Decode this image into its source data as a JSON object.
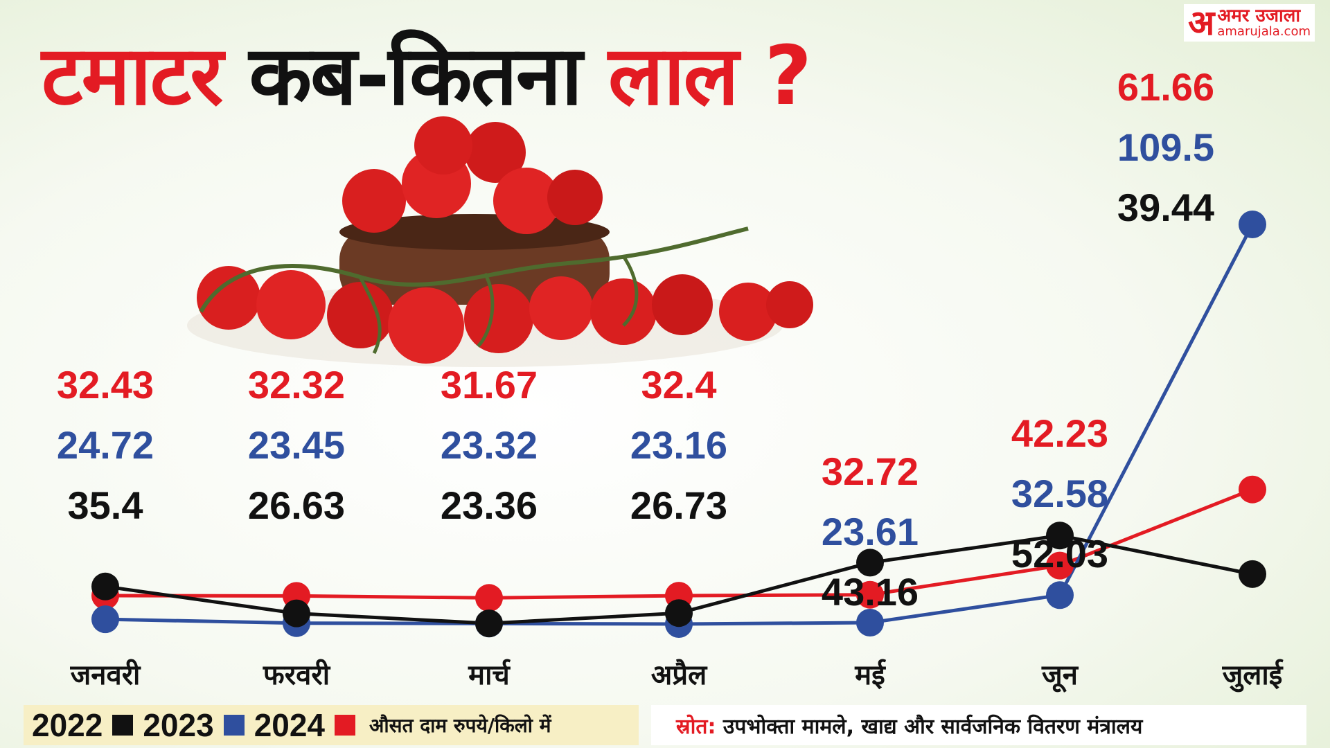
{
  "title": {
    "part1": "टमाटर",
    "part2": "कब-कितना",
    "part3": "लाल ?"
  },
  "brand": {
    "logo": "अ",
    "name": "अमर उजाला",
    "url": "amarujala.com"
  },
  "legend": {
    "items": [
      {
        "label": "2022",
        "color": "#111111"
      },
      {
        "label": "2023",
        "color": "#2f4f9e"
      },
      {
        "label": "2024",
        "color": "#e31b23"
      }
    ],
    "note": "औसत दाम रुपये/किलो में"
  },
  "source": {
    "label": "स्रोत:",
    "text": "उपभोक्ता मामले, खाद्य और सार्वजनिक वितरण मंत्रालय"
  },
  "chart_data": {
    "type": "line",
    "categories": [
      "जनवरी",
      "फरवरी",
      "मार्च",
      "अप्रैल",
      "मई",
      "जून",
      "जुलाई"
    ],
    "series": [
      {
        "name": "2022",
        "color": "#111111",
        "values": [
          35.4,
          26.63,
          23.36,
          26.73,
          43.16,
          52.03,
          39.44
        ]
      },
      {
        "name": "2023",
        "color": "#2f4f9e",
        "values": [
          24.72,
          23.45,
          23.32,
          23.16,
          23.61,
          32.58,
          109.5
        ]
      },
      {
        "name": "2024",
        "color": "#e31b23",
        "values": [
          32.43,
          32.32,
          31.67,
          32.4,
          32.72,
          42.23,
          61.66
        ]
      }
    ],
    "value_labels_order": [
      "2024",
      "2023",
      "2022"
    ],
    "ylim": [
      20,
      115
    ],
    "legend_position": "bottom-left",
    "grid": false
  }
}
